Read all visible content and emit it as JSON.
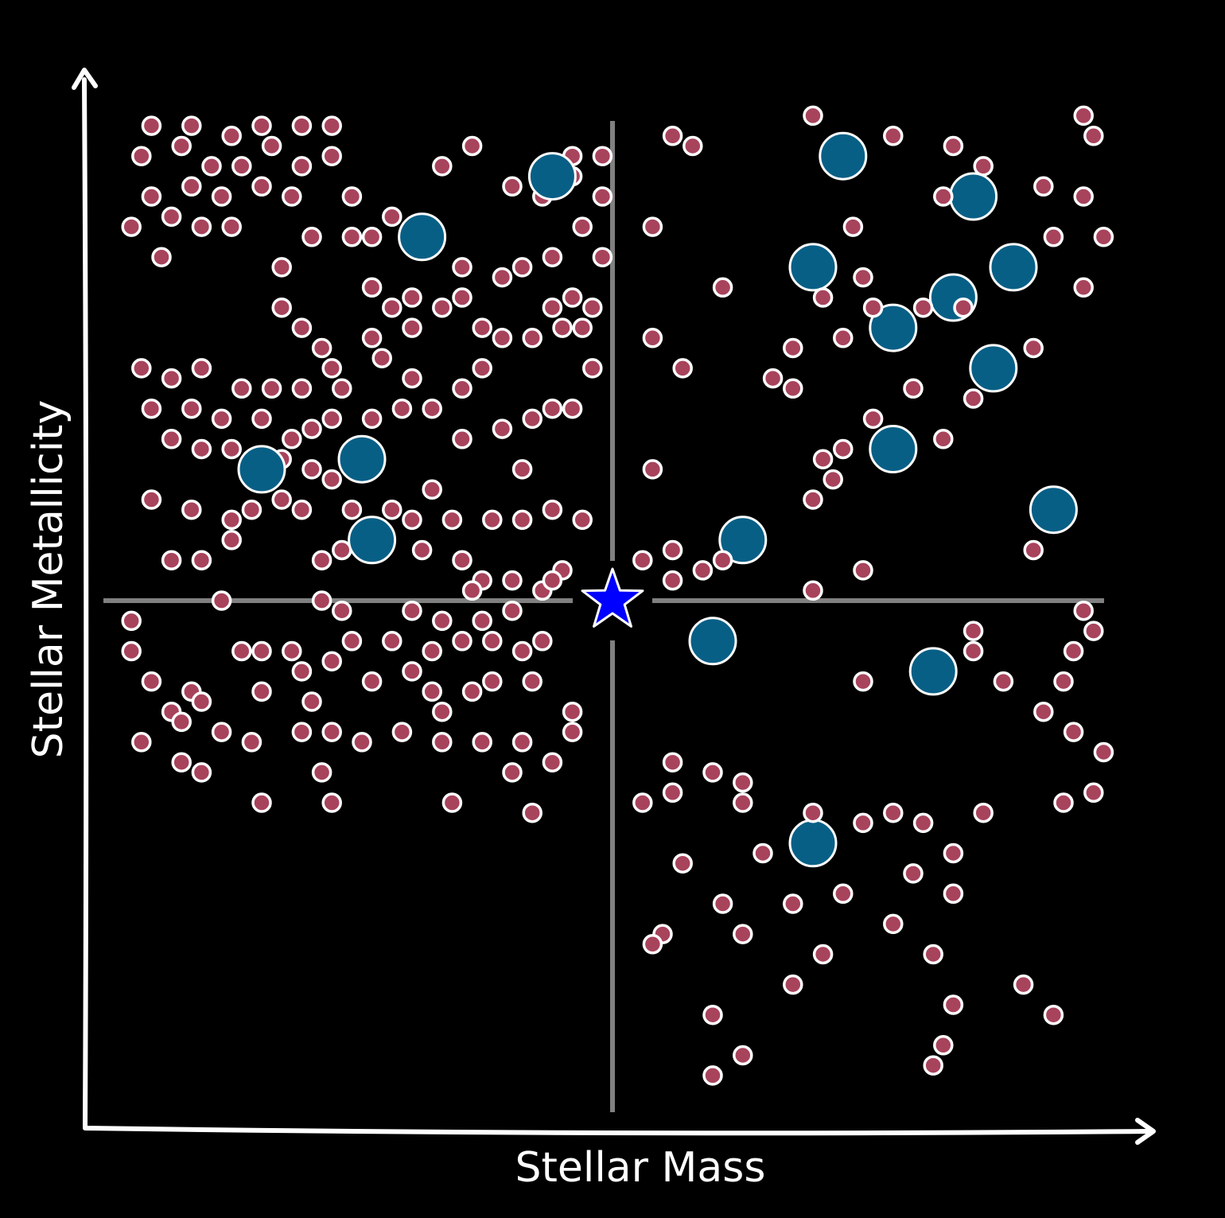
{
  "chart_data": {
    "type": "scatter",
    "title": "",
    "xlabel": "Stellar Mass",
    "ylabel": "Stellar Metallicity",
    "xlim": [
      0,
      10
    ],
    "ylim": [
      0,
      10
    ],
    "grid": false,
    "axis_ticks": false,
    "dividers": {
      "x": 5,
      "y": 5
    },
    "colors": {
      "background": "#000000",
      "axis": "#ffffff",
      "divider": "#808080",
      "small_marker": "#a8435c",
      "large_marker": "#085f86",
      "marker_edge": "#ffffff",
      "star": "#0000ff"
    },
    "series": [
      {
        "marker": "small-circle",
        "points": [
          [
            0.4,
            9.7
          ],
          [
            0.8,
            9.7
          ],
          [
            1.2,
            9.6
          ],
          [
            1.5,
            9.7
          ],
          [
            1.9,
            9.7
          ],
          [
            2.2,
            9.7
          ],
          [
            0.3,
            9.4
          ],
          [
            0.7,
            9.5
          ],
          [
            1.0,
            9.3
          ],
          [
            1.3,
            9.3
          ],
          [
            1.6,
            9.5
          ],
          [
            1.9,
            9.3
          ],
          [
            2.2,
            9.4
          ],
          [
            0.4,
            9.0
          ],
          [
            0.8,
            9.1
          ],
          [
            1.1,
            9.0
          ],
          [
            1.5,
            9.1
          ],
          [
            1.8,
            9.0
          ],
          [
            0.2,
            8.7
          ],
          [
            0.6,
            8.8
          ],
          [
            0.9,
            8.7
          ],
          [
            1.2,
            8.7
          ],
          [
            0.5,
            8.4
          ],
          [
            2.4,
            9.0
          ],
          [
            2.8,
            8.8
          ],
          [
            3.3,
            9.3
          ],
          [
            3.6,
            9.5
          ],
          [
            4.0,
            9.1
          ],
          [
            4.3,
            9.0
          ],
          [
            4.6,
            9.2
          ],
          [
            4.6,
            9.4
          ],
          [
            4.9,
            9.4
          ],
          [
            4.9,
            9.0
          ],
          [
            4.7,
            8.7
          ],
          [
            4.9,
            8.4
          ],
          [
            2.4,
            8.6
          ],
          [
            2.6,
            8.6
          ],
          [
            2.0,
            8.6
          ],
          [
            1.7,
            8.3
          ],
          [
            2.6,
            8.1
          ],
          [
            3.0,
            8.0
          ],
          [
            2.8,
            7.9
          ],
          [
            3.5,
            8.3
          ],
          [
            3.5,
            8.0
          ],
          [
            3.9,
            8.2
          ],
          [
            4.1,
            8.3
          ],
          [
            4.4,
            8.4
          ],
          [
            4.6,
            8.0
          ],
          [
            4.4,
            7.9
          ],
          [
            4.8,
            7.9
          ],
          [
            4.2,
            7.6
          ],
          [
            4.5,
            7.7
          ],
          [
            4.7,
            7.7
          ],
          [
            1.7,
            7.9
          ],
          [
            1.9,
            7.7
          ],
          [
            2.1,
            7.5
          ],
          [
            2.6,
            7.6
          ],
          [
            3.0,
            7.7
          ],
          [
            3.3,
            7.9
          ],
          [
            3.7,
            7.7
          ],
          [
            3.9,
            7.6
          ],
          [
            0.3,
            7.3
          ],
          [
            0.6,
            7.2
          ],
          [
            0.9,
            7.3
          ],
          [
            1.3,
            7.1
          ],
          [
            1.6,
            7.1
          ],
          [
            1.9,
            7.1
          ],
          [
            2.2,
            7.3
          ],
          [
            2.3,
            7.1
          ],
          [
            2.7,
            7.4
          ],
          [
            3.0,
            7.2
          ],
          [
            0.4,
            6.9
          ],
          [
            0.8,
            6.9
          ],
          [
            1.1,
            6.8
          ],
          [
            1.5,
            6.8
          ],
          [
            1.8,
            6.6
          ],
          [
            2.0,
            6.7
          ],
          [
            2.2,
            6.8
          ],
          [
            2.6,
            6.8
          ],
          [
            2.9,
            6.9
          ],
          [
            3.2,
            6.9
          ],
          [
            3.5,
            7.1
          ],
          [
            3.7,
            7.3
          ],
          [
            3.5,
            6.6
          ],
          [
            3.9,
            6.7
          ],
          [
            4.2,
            6.8
          ],
          [
            4.4,
            6.9
          ],
          [
            4.6,
            6.9
          ],
          [
            4.8,
            7.3
          ],
          [
            0.6,
            6.6
          ],
          [
            0.9,
            6.5
          ],
          [
            1.2,
            6.5
          ],
          [
            1.4,
            6.4
          ],
          [
            1.7,
            6.4
          ],
          [
            2.0,
            6.3
          ],
          [
            2.2,
            6.2
          ],
          [
            2.6,
            6.4
          ],
          [
            3.2,
            6.1
          ],
          [
            4.1,
            6.3
          ],
          [
            0.4,
            6.0
          ],
          [
            0.8,
            5.9
          ],
          [
            1.2,
            5.8
          ],
          [
            1.4,
            5.9
          ],
          [
            1.7,
            6.0
          ],
          [
            1.9,
            5.9
          ],
          [
            2.4,
            5.9
          ],
          [
            2.8,
            5.9
          ],
          [
            3.0,
            5.8
          ],
          [
            3.4,
            5.8
          ],
          [
            3.8,
            5.8
          ],
          [
            4.1,
            5.8
          ],
          [
            4.4,
            5.9
          ],
          [
            4.7,
            5.8
          ],
          [
            0.6,
            5.4
          ],
          [
            0.9,
            5.4
          ],
          [
            1.2,
            5.6
          ],
          [
            2.1,
            5.4
          ],
          [
            2.3,
            5.5
          ],
          [
            2.7,
            5.6
          ],
          [
            3.1,
            5.5
          ],
          [
            3.5,
            5.4
          ],
          [
            3.7,
            5.2
          ],
          [
            4.0,
            5.2
          ],
          [
            4.3,
            5.1
          ],
          [
            4.5,
            5.3
          ],
          [
            1.1,
            5.0
          ],
          [
            2.1,
            5.0
          ],
          [
            2.3,
            4.9
          ],
          [
            3.0,
            4.9
          ],
          [
            3.3,
            4.8
          ],
          [
            3.7,
            4.8
          ],
          [
            3.6,
            5.1
          ],
          [
            4.0,
            4.9
          ],
          [
            4.3,
            4.6
          ],
          [
            4.4,
            5.2
          ],
          [
            0.2,
            4.8
          ],
          [
            0.2,
            4.5
          ],
          [
            0.4,
            4.2
          ],
          [
            0.8,
            4.1
          ],
          [
            1.3,
            4.5
          ],
          [
            1.5,
            4.5
          ],
          [
            1.8,
            4.5
          ],
          [
            1.9,
            4.3
          ],
          [
            2.2,
            4.4
          ],
          [
            2.4,
            4.6
          ],
          [
            2.8,
            4.6
          ],
          [
            3.2,
            4.5
          ],
          [
            3.5,
            4.6
          ],
          [
            3.8,
            4.6
          ],
          [
            4.1,
            4.5
          ],
          [
            3.0,
            4.3
          ],
          [
            0.6,
            3.9
          ],
          [
            0.9,
            4.0
          ],
          [
            1.5,
            4.1
          ],
          [
            2.0,
            4.0
          ],
          [
            2.6,
            4.2
          ],
          [
            3.2,
            4.1
          ],
          [
            3.6,
            4.1
          ],
          [
            3.8,
            4.2
          ],
          [
            4.2,
            4.2
          ],
          [
            0.3,
            3.6
          ],
          [
            0.7,
            3.8
          ],
          [
            1.1,
            3.7
          ],
          [
            1.4,
            3.6
          ],
          [
            2.2,
            3.7
          ],
          [
            2.5,
            3.6
          ],
          [
            2.9,
            3.7
          ],
          [
            3.3,
            3.6
          ],
          [
            3.7,
            3.6
          ],
          [
            4.1,
            3.6
          ],
          [
            4.6,
            3.9
          ],
          [
            0.7,
            3.4
          ],
          [
            4.6,
            3.7
          ],
          [
            3.3,
            3.9
          ],
          [
            1.9,
            3.7
          ],
          [
            4.0,
            3.3
          ],
          [
            4.4,
            3.4
          ],
          [
            2.1,
            3.3
          ],
          [
            0.9,
            3.3
          ],
          [
            1.5,
            3.0
          ],
          [
            2.2,
            3.0
          ],
          [
            4.2,
            2.9
          ],
          [
            3.4,
            3.0
          ]
        ]
      },
      {
        "marker": "large-circle",
        "points": [
          [
            4.4,
            9.2
          ],
          [
            3.1,
            8.6
          ],
          [
            1.5,
            6.3
          ],
          [
            2.5,
            6.4
          ],
          [
            2.6,
            5.6
          ],
          [
            7.3,
            9.4
          ],
          [
            8.6,
            9.0
          ],
          [
            7.0,
            8.3
          ],
          [
            9.0,
            8.3
          ],
          [
            8.4,
            8.0
          ],
          [
            7.8,
            7.7
          ],
          [
            8.8,
            7.3
          ],
          [
            7.8,
            6.5
          ],
          [
            9.4,
            5.9
          ],
          [
            6.3,
            5.6
          ],
          [
            6.0,
            4.6
          ],
          [
            8.2,
            4.3
          ],
          [
            7.0,
            2.6
          ]
        ]
      },
      {
        "marker": "small-circle",
        "points": [
          [
            7.0,
            9.8
          ],
          [
            7.8,
            9.6
          ],
          [
            5.6,
            9.6
          ],
          [
            5.8,
            9.5
          ],
          [
            8.4,
            9.5
          ],
          [
            8.7,
            9.3
          ],
          [
            8.3,
            9.0
          ],
          [
            9.8,
            9.6
          ],
          [
            9.7,
            9.8
          ],
          [
            9.3,
            9.1
          ],
          [
            9.7,
            9.0
          ],
          [
            5.4,
            8.7
          ],
          [
            7.4,
            8.7
          ],
          [
            9.4,
            8.6
          ],
          [
            9.9,
            8.6
          ],
          [
            7.5,
            8.2
          ],
          [
            6.1,
            8.1
          ],
          [
            7.1,
            8.0
          ],
          [
            7.6,
            7.9
          ],
          [
            8.5,
            7.9
          ],
          [
            8.1,
            7.9
          ],
          [
            9.7,
            8.1
          ],
          [
            5.4,
            7.6
          ],
          [
            6.8,
            7.5
          ],
          [
            7.3,
            7.6
          ],
          [
            9.2,
            7.5
          ],
          [
            5.7,
            7.3
          ],
          [
            6.6,
            7.2
          ],
          [
            6.8,
            7.1
          ],
          [
            8.0,
            7.1
          ],
          [
            8.6,
            7.0
          ],
          [
            7.6,
            6.8
          ],
          [
            8.3,
            6.6
          ],
          [
            7.3,
            6.5
          ],
          [
            5.4,
            6.3
          ],
          [
            7.1,
            6.4
          ],
          [
            7.2,
            6.2
          ],
          [
            7.0,
            6.0
          ],
          [
            9.2,
            5.5
          ],
          [
            5.3,
            5.4
          ],
          [
            5.6,
            5.5
          ],
          [
            6.1,
            5.4
          ],
          [
            5.6,
            5.2
          ],
          [
            5.9,
            5.3
          ],
          [
            7.5,
            5.3
          ],
          [
            7.0,
            5.1
          ],
          [
            9.7,
            4.9
          ],
          [
            7.5,
            4.2
          ],
          [
            8.9,
            4.2
          ],
          [
            5.6,
            3.1
          ],
          [
            5.6,
            3.4
          ],
          [
            6.0,
            3.3
          ],
          [
            6.3,
            3.0
          ],
          [
            6.3,
            3.2
          ],
          [
            5.3,
            3.0
          ],
          [
            8.6,
            4.7
          ],
          [
            8.6,
            4.5
          ],
          [
            9.8,
            4.7
          ],
          [
            9.6,
            4.5
          ],
          [
            9.5,
            4.2
          ],
          [
            9.3,
            3.9
          ],
          [
            9.6,
            3.7
          ],
          [
            9.9,
            3.5
          ],
          [
            9.5,
            3.0
          ],
          [
            9.8,
            3.1
          ],
          [
            8.7,
            2.9
          ],
          [
            7.8,
            2.9
          ],
          [
            7.5,
            2.8
          ],
          [
            7.0,
            2.9
          ],
          [
            8.1,
            2.8
          ],
          [
            8.4,
            2.5
          ],
          [
            8.0,
            2.3
          ],
          [
            8.4,
            2.1
          ],
          [
            5.7,
            2.4
          ],
          [
            6.1,
            2.0
          ],
          [
            5.5,
            1.7
          ],
          [
            6.8,
            2.0
          ],
          [
            6.5,
            2.5
          ],
          [
            7.3,
            2.1
          ],
          [
            8.2,
            1.5
          ],
          [
            7.8,
            1.8
          ],
          [
            8.4,
            1.0
          ],
          [
            7.1,
            1.5
          ],
          [
            6.3,
            1.7
          ],
          [
            5.4,
            1.6
          ],
          [
            6.8,
            1.2
          ],
          [
            6.0,
            0.9
          ],
          [
            9.1,
            1.2
          ],
          [
            9.4,
            0.9
          ],
          [
            6.3,
            0.5
          ],
          [
            8.3,
            0.6
          ],
          [
            6.0,
            0.3
          ],
          [
            8.2,
            0.4
          ]
        ]
      }
    ],
    "reference_point": {
      "marker": "star",
      "x": 5.0,
      "y": 5.0
    }
  }
}
